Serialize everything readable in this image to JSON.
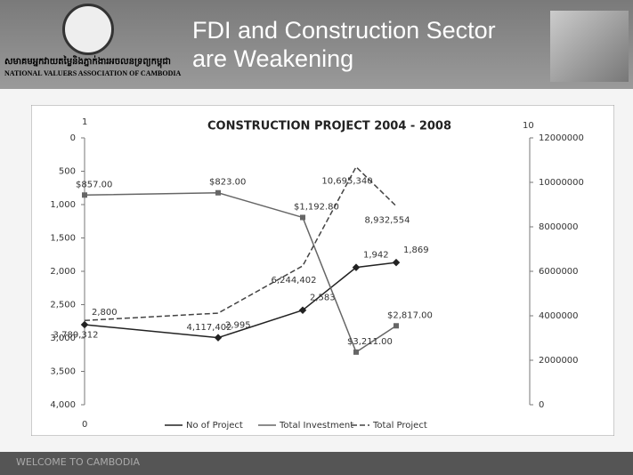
{
  "header": {
    "org_khmer": "សមាគមអ្នកវាយតម្លៃនិងភ្នាក់ងារអចលនទ្រព្យកម្ពុជា",
    "org_name": "NATIONAL VALUERS ASSOCIATION OF CAMBODIA",
    "title": "FDI and Construction Sector are Weakening"
  },
  "footer": {
    "text": "WELCOME TO CAMBODIA"
  },
  "chart_data": {
    "type": "line",
    "title": "CONSTRUCTION PROJECT 2004 - 2008",
    "annotations": [
      "1",
      "0",
      "10"
    ],
    "categories": [
      null,
      null,
      null,
      null,
      null
    ],
    "ylim": [
      4000,
      0
    ],
    "yticks": [
      0,
      500,
      {
        "value": 1000,
        "label": "1,000"
      },
      {
        "value": 1500,
        "label": "1,500"
      },
      {
        "value": 2000,
        "label": "2,000"
      },
      {
        "value": 2500,
        "label": "2,500"
      },
      {
        "value": 3000,
        "label": "3,000"
      },
      {
        "value": 3500,
        "label": "3,500"
      },
      {
        "value": 4000,
        "label": "4,000"
      }
    ],
    "y2lim": [
      0,
      12000000
    ],
    "y2ticks": [
      0,
      2000000,
      4000000,
      6000000,
      8000000,
      10000000,
      12000000
    ],
    "series": [
      {
        "name": "No of Project",
        "color": "#222",
        "values": [
          2800,
          2995,
          2583,
          1942,
          1869
        ],
        "value_labels": [
          "2,800",
          "2,995",
          "2,583",
          "1,942",
          "1,869"
        ]
      },
      {
        "name": "Total Investment",
        "color": "#666",
        "values": [
          857,
          823,
          1192.8,
          3211,
          2817
        ],
        "value_labels": [
          "$857.00",
          "$823.00",
          "$1,192.80",
          "$3,211.00",
          "$2,817.00"
        ]
      },
      {
        "name": "Total Project",
        "color": "#444",
        "axis": "y2",
        "values": [
          3789312,
          4117402,
          6244402,
          10695340,
          8932554
        ],
        "value_labels": [
          "3,789,312",
          "4,117,402",
          "6,244,402",
          "10,695,340",
          "8,932,554"
        ]
      }
    ]
  }
}
